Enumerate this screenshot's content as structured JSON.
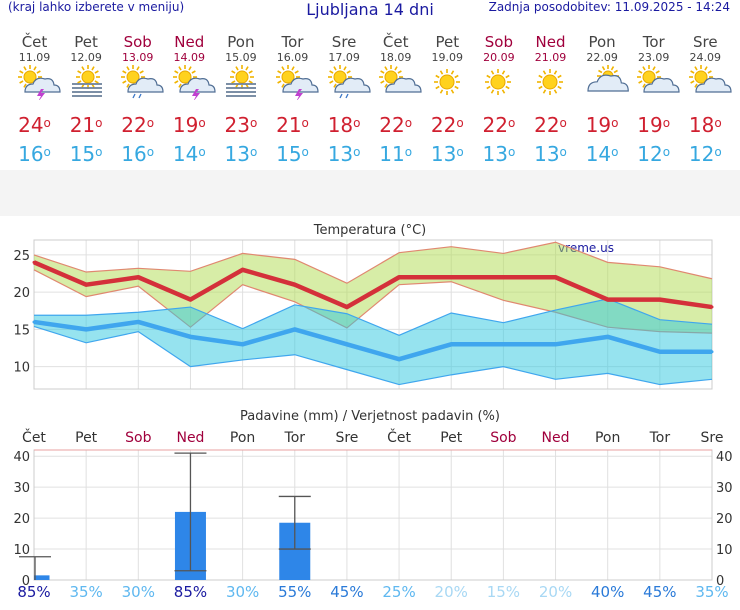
{
  "header": {
    "menu_hint": "(kraj lahko izberete v meniju)",
    "title": "Ljubljana 14 dni",
    "updated": "Zadnja posodobitev: 11.09.2025 - 14:24"
  },
  "days": [
    {
      "name": "Čet",
      "date": "11.09",
      "icon": "sun-cloud-storm",
      "max": "24",
      "min": "16",
      "weekend": false
    },
    {
      "name": "Pet",
      "date": "12.09",
      "icon": "sun-fog",
      "max": "21",
      "min": "15",
      "weekend": false
    },
    {
      "name": "Sob",
      "date": "13.09",
      "icon": "sun-cloud-rain",
      "max": "22",
      "min": "16",
      "weekend": true
    },
    {
      "name": "Ned",
      "date": "14.09",
      "icon": "sun-cloud-storm",
      "max": "19",
      "min": "14",
      "weekend": true
    },
    {
      "name": "Pon",
      "date": "15.09",
      "icon": "sun-fog",
      "max": "23",
      "min": "13",
      "weekend": false
    },
    {
      "name": "Tor",
      "date": "16.09",
      "icon": "sun-cloud-storm",
      "max": "21",
      "min": "15",
      "weekend": false
    },
    {
      "name": "Sre",
      "date": "17.09",
      "icon": "sun-cloud-rain",
      "max": "18",
      "min": "13",
      "weekend": false
    },
    {
      "name": "Čet",
      "date": "18.09",
      "icon": "sun-cloud",
      "max": "22",
      "min": "11",
      "weekend": false
    },
    {
      "name": "Pet",
      "date": "19.09",
      "icon": "sun",
      "max": "22",
      "min": "13",
      "weekend": false
    },
    {
      "name": "Sob",
      "date": "20.09",
      "icon": "sun",
      "max": "22",
      "min": "13",
      "weekend": true
    },
    {
      "name": "Ned",
      "date": "21.09",
      "icon": "sun",
      "max": "22",
      "min": "13",
      "weekend": true
    },
    {
      "name": "Pon",
      "date": "22.09",
      "icon": "cloud-sun",
      "max": "19",
      "min": "14",
      "weekend": false
    },
    {
      "name": "Tor",
      "date": "23.09",
      "icon": "sun-cloud",
      "max": "19",
      "min": "12",
      "weekend": false
    },
    {
      "name": "Sre",
      "date": "24.09",
      "icon": "sun-cloud",
      "max": "18",
      "min": "12",
      "weekend": false
    }
  ],
  "colors": {
    "max": "#d02030",
    "min": "#36a8e0",
    "weekend": "#a0003c",
    "title": "#1a1aa0",
    "bar": "#2e86e8"
  },
  "chart_data": [
    {
      "type": "line",
      "title": "Temperatura (°C)",
      "watermark": "vreme.us",
      "x": [
        "11.09",
        "12.09",
        "13.09",
        "14.09",
        "15.09",
        "16.09",
        "17.09",
        "18.09",
        "19.09",
        "20.09",
        "21.09",
        "22.09",
        "23.09",
        "24.09"
      ],
      "ylim": [
        7,
        27
      ],
      "yticks": [
        10,
        15,
        20,
        25
      ],
      "series": [
        {
          "name": "max",
          "values": [
            24,
            21,
            22,
            19,
            23,
            21,
            18,
            22,
            22,
            22,
            22,
            19,
            19,
            18
          ],
          "upper": [
            25,
            22.7,
            23.2,
            22.8,
            25.2,
            24.4,
            21.2,
            25.3,
            26.1,
            25.2,
            26.7,
            24,
            23.4,
            21.8
          ],
          "lower": [
            23,
            19.4,
            20.8,
            15.3,
            21,
            18.7,
            15.2,
            21,
            21.4,
            18.9,
            17.3,
            15.3,
            14.7,
            14.5
          ]
        },
        {
          "name": "min",
          "values": [
            16,
            15,
            16,
            14,
            13,
            15,
            13,
            11,
            13,
            13,
            13,
            14,
            12,
            12
          ],
          "upper": [
            16.9,
            16.9,
            17.3,
            18,
            15.1,
            18.3,
            17.1,
            14.2,
            17.2,
            15.9,
            17.6,
            19.1,
            16.3,
            15.7
          ],
          "lower": [
            15.4,
            13.2,
            14.7,
            10,
            10.9,
            11.6,
            9.6,
            7.6,
            8.9,
            10,
            8.3,
            9.1,
            7.6,
            8.3
          ]
        }
      ],
      "grid": true
    },
    {
      "type": "bar",
      "title": "Padavine (mm) / Verjetnost padavin (%)",
      "categories": [
        "Čet",
        "Pet",
        "Sob",
        "Ned",
        "Pon",
        "Tor",
        "Sre",
        "Čet",
        "Pet",
        "Sob",
        "Ned",
        "Pon",
        "Tor",
        "Sre"
      ],
      "values": [
        1.5,
        0,
        0,
        22,
        0,
        18.5,
        0,
        0,
        0,
        0,
        0,
        0,
        0,
        0
      ],
      "error_high": [
        7.5,
        0,
        0,
        41,
        0,
        27,
        0,
        0,
        0,
        0,
        0,
        0,
        0,
        0
      ],
      "error_low": [
        0,
        0,
        0,
        3,
        0,
        10,
        0,
        0,
        0,
        0,
        0,
        0,
        0,
        0
      ],
      "probability": [
        "85%",
        "35%",
        "30%",
        "85%",
        "30%",
        "55%",
        "45%",
        "25%",
        "20%",
        "15%",
        "20%",
        "40%",
        "45%",
        "35%"
      ],
      "probability_values": [
        85,
        35,
        30,
        85,
        30,
        55,
        45,
        25,
        20,
        15,
        20,
        40,
        45,
        35
      ],
      "ylim": [
        0,
        42
      ],
      "yticks": [
        0,
        10,
        20,
        30,
        40
      ],
      "grid": true
    }
  ]
}
